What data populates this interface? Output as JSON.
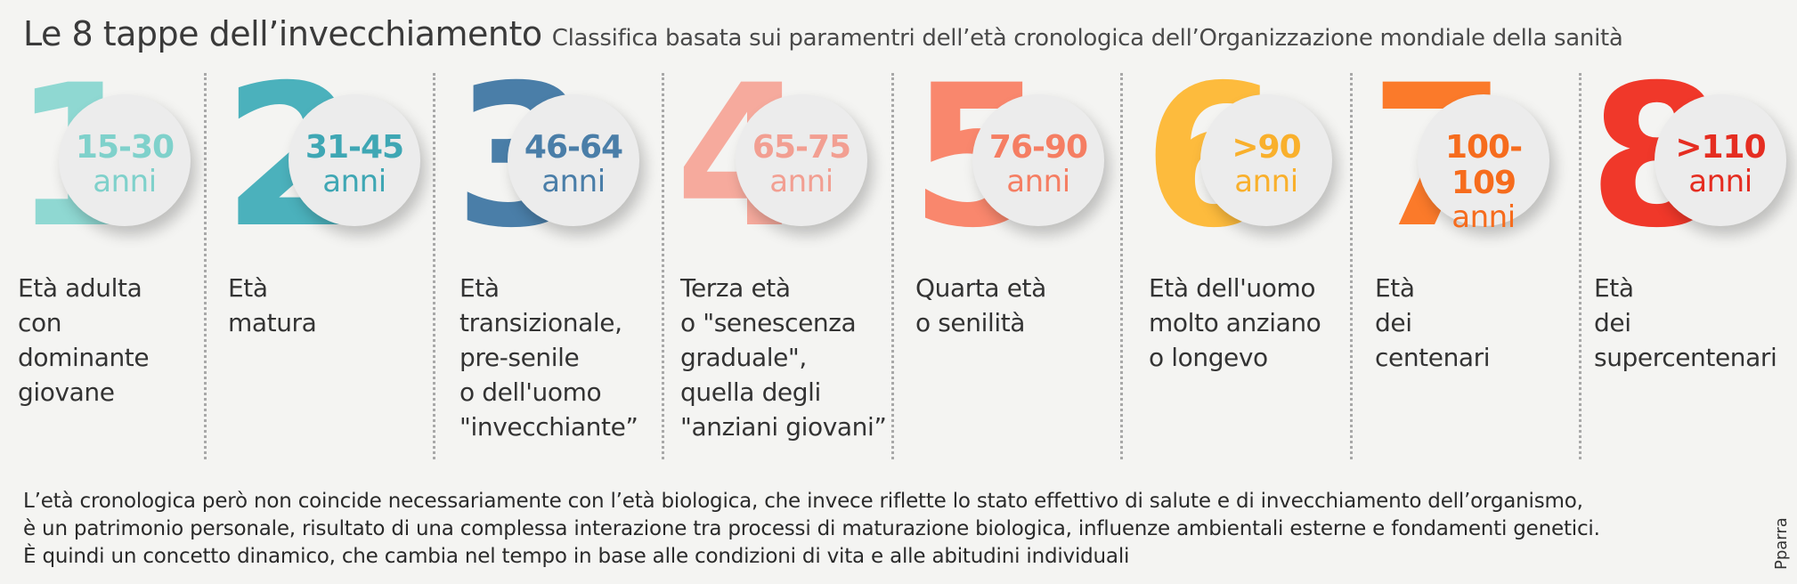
{
  "header": {
    "title": "Le 8 tappe dell’invecchiamento",
    "subtitle": "Classifica basata sui paramentri dell’età cronologica dell’Organizzazione mondiale della sanità"
  },
  "stages": [
    {
      "number": "1",
      "range": "15-30",
      "unit": "anni",
      "desc": [
        "Età adulta",
        "con",
        "dominante",
        "giovane"
      ],
      "num_color": "#8fd8d2",
      "text_color": "#7fd1cb"
    },
    {
      "number": "2",
      "range": "31-45",
      "unit": "anni",
      "desc": [
        "Età",
        "matura"
      ],
      "num_color": "#4bb1bc",
      "text_color": "#3fa7b4"
    },
    {
      "number": "3",
      "range": "46-64",
      "unit": "anni",
      "desc": [
        "Età",
        "transizionale,",
        "pre-senile",
        "o dell'uomo",
        "\"invecchiante”"
      ],
      "num_color": "#4a7ea8",
      "text_color": "#4a7ea8"
    },
    {
      "number": "4",
      "range": "65-75",
      "unit": "anni",
      "desc": [
        "Terza età",
        "o \"senescenza",
        "graduale\",",
        "quella degli",
        "\"anziani giovani”"
      ],
      "num_color": "#f6aa9d",
      "text_color": "#f29f92"
    },
    {
      "number": "5",
      "range": "76-90",
      "unit": "anni",
      "desc": [
        "Quarta età",
        "o senilità"
      ],
      "num_color": "#f9876d",
      "text_color": "#f57e63"
    },
    {
      "number": "6",
      "range": ">90",
      "unit": "anni",
      "desc": [
        "Età dell'uomo",
        "molto anziano",
        "o longevo"
      ],
      "num_color": "#fdbb3d",
      "text_color": "#f9b02c"
    },
    {
      "number": "7",
      "range": "100-109",
      "unit": "anni",
      "desc": [
        "Età",
        "dei",
        "centenari"
      ],
      "num_color": "#fb7a2a",
      "text_color": "#f66c1d"
    },
    {
      "number": "8",
      "range": ">110",
      "unit": "anni",
      "desc": [
        "Età",
        "dei",
        "supercentenari"
      ],
      "num_color": "#f0382a",
      "text_color": "#e52d21"
    }
  ],
  "footer": {
    "lines": [
      "L’età cronologica però non coincide necessariamente con l’età biologica, che invece riflette lo stato effettivo di salute e di invecchiamento dell’organismo,",
      "è un patrimonio personale, risultato di una complessa interazione tra processi di maturazione biologica, influenze ambientali esterne e fondamenti genetici.",
      "È quindi un concetto dinamico, che cambia nel tempo in base alle condizioni di vita e alle abitudini individuali"
    ]
  },
  "credit": "Pparra"
}
